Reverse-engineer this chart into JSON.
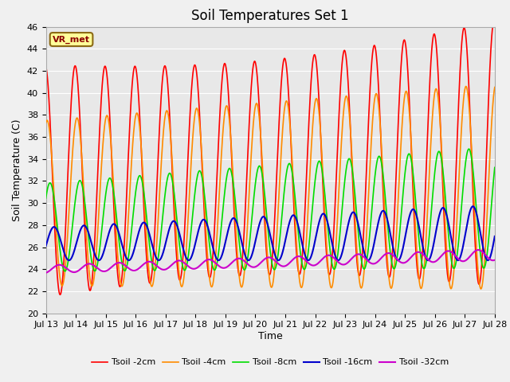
{
  "title": "Soil Temperatures Set 1",
  "xlabel": "Time",
  "ylabel": "Soil Temperature (C)",
  "ylim": [
    20,
    46
  ],
  "yticks": [
    20,
    22,
    24,
    26,
    28,
    30,
    32,
    34,
    36,
    38,
    40,
    42,
    44,
    46
  ],
  "fig_bg_color": "#f0f0f0",
  "plot_bg_color": "#e8e8e8",
  "series_colors": [
    "#ff0000",
    "#ff8c00",
    "#00dd00",
    "#0000cc",
    "#cc00cc"
  ],
  "series_labels": [
    "Tsoil -2cm",
    "Tsoil -4cm",
    "Tsoil -8cm",
    "Tsoil -16cm",
    "Tsoil -32cm"
  ],
  "series_linewidths": [
    1.2,
    1.2,
    1.2,
    1.5,
    1.5
  ],
  "x_start_day": 13,
  "x_end_day": 28,
  "n_points": 1500,
  "period_days": 1.0,
  "label_box_text": "VR_met",
  "label_box_facecolor": "#ffff99",
  "label_box_edgecolor": "#8B6914",
  "xtick_labels": [
    "Jul 13",
    "Jul 14",
    "Jul 15",
    "Jul 16",
    "Jul 17",
    "Jul 18",
    "Jul 19",
    "Jul 20",
    "Jul 21",
    "Jul 22",
    "Jul 23",
    "Jul 24",
    "Jul 25",
    "Jul 26",
    "Jul 27",
    "Jul 28"
  ],
  "xtick_positions": [
    13,
    14,
    15,
    16,
    17,
    18,
    19,
    20,
    21,
    22,
    23,
    24,
    25,
    26,
    27,
    28
  ],
  "grid_color": "#ffffff",
  "grid_linewidth": 0.8,
  "title_fontsize": 12,
  "axis_label_fontsize": 9,
  "tick_fontsize": 8
}
